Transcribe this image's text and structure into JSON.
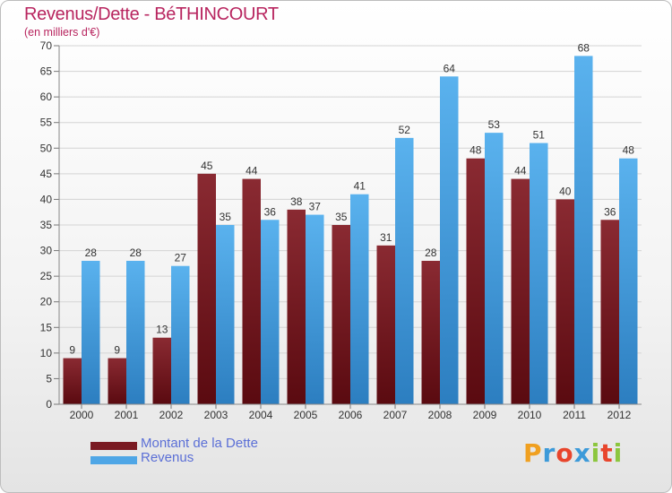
{
  "chart_data": {
    "type": "bar",
    "title": "Revenus/Dette - BéTHINCOURT",
    "subtitle": "(en milliers d'€)",
    "categories": [
      "2000",
      "2001",
      "2002",
      "2003",
      "2004",
      "2005",
      "2006",
      "2007",
      "2008",
      "2009",
      "2010",
      "2011",
      "2012"
    ],
    "series": [
      {
        "name": "Montant de la Dette",
        "values": [
          9,
          9,
          13,
          45,
          44,
          38,
          35,
          31,
          28,
          48,
          44,
          40,
          36
        ],
        "color": "#7a1a22"
      },
      {
        "name": "Revenus",
        "values": [
          28,
          28,
          27,
          35,
          36,
          37,
          41,
          52,
          64,
          53,
          51,
          68,
          48
        ],
        "color": "#4fa6e6"
      }
    ],
    "ylim": [
      0,
      70
    ],
    "yticks": [
      0,
      5,
      10,
      15,
      20,
      25,
      30,
      35,
      40,
      45,
      50,
      55,
      60,
      65,
      70
    ],
    "grid": true,
    "legend": "bottom-left"
  },
  "brand": {
    "letters": [
      "P",
      "r",
      "o",
      "x",
      "i",
      "t",
      "i"
    ],
    "colors": [
      "#f0a020",
      "#3c9ad9",
      "#e8452c",
      "#3c9ad9",
      "#8cc63e",
      "#e8452c",
      "#8cc63e"
    ]
  }
}
